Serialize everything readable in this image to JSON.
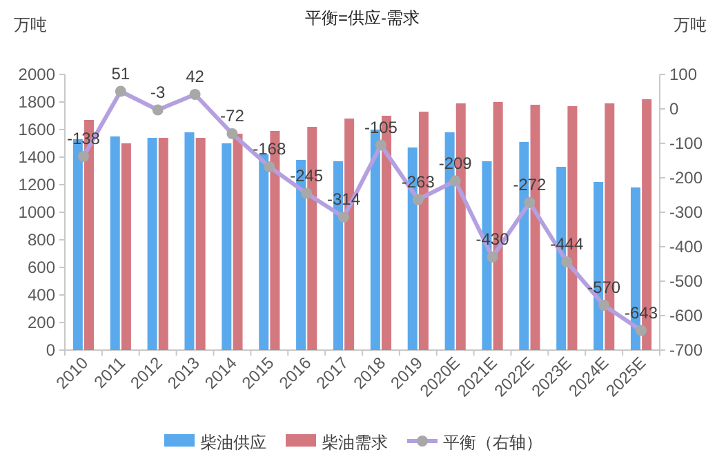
{
  "chart_data": {
    "type": "bar",
    "title": "平衡=供应-需求",
    "ylabel": "万吨",
    "y2label": "万吨",
    "categories": [
      "2010",
      "2011",
      "2012",
      "2013",
      "2014",
      "2015",
      "2016",
      "2017",
      "2018",
      "2019",
      "2020E",
      "2021E",
      "2022E",
      "2023E",
      "2024E",
      "2025E"
    ],
    "series": [
      {
        "name": "柴油供应",
        "color": "#5aa9ec",
        "values": [
          1530,
          1550,
          1540,
          1580,
          1500,
          1420,
          1380,
          1370,
          1600,
          1470,
          1580,
          1370,
          1510,
          1330,
          1220,
          1180
        ]
      },
      {
        "name": "柴油需求",
        "color": "#d47880",
        "values": [
          1670,
          1500,
          1540,
          1540,
          1570,
          1590,
          1620,
          1680,
          1700,
          1730,
          1790,
          1800,
          1780,
          1770,
          1790,
          1820
        ]
      },
      {
        "name": "平衡（右轴）",
        "type": "line",
        "axis": "y2",
        "color": "#b4a0e0",
        "marker": "circle",
        "values": [
          -138,
          51,
          -3,
          42,
          -72,
          -168,
          -245,
          -314,
          -105,
          -263,
          -209,
          -430,
          -272,
          -444,
          -570,
          -643
        ],
        "value_labels": [
          "-138",
          "51",
          "-3",
          "42",
          "-72",
          "-168",
          "-245",
          "-314",
          "-105",
          "-263",
          "-209",
          "-430",
          "-272",
          "-444",
          "-570",
          "-643"
        ]
      }
    ],
    "ylim": [
      0,
      2000
    ],
    "yticks": [
      0,
      200,
      400,
      600,
      800,
      1000,
      1200,
      1400,
      1600,
      1800,
      2000
    ],
    "y2lim": [
      -700,
      100
    ],
    "y2ticks": [
      -700,
      -600,
      -500,
      -400,
      -300,
      -200,
      -100,
      0,
      100
    ],
    "grid": false,
    "legend": "bottom"
  }
}
